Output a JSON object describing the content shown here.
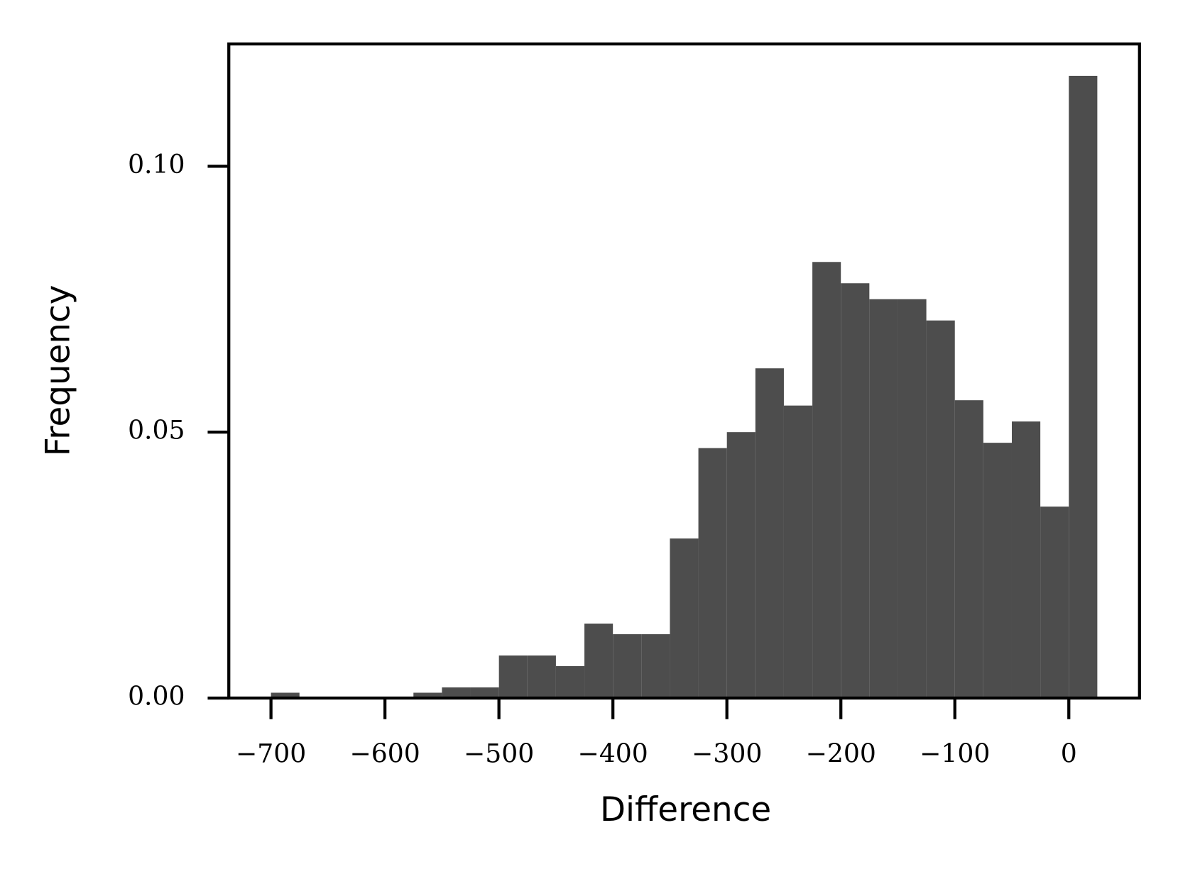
{
  "chart_data": {
    "type": "histogram",
    "x_label": "Difference",
    "y_label": "Frequency",
    "bins": [
      -700,
      -675,
      -650,
      -625,
      -600,
      -575,
      -550,
      -525,
      -500,
      -475,
      -450,
      -425,
      -400,
      -375,
      -350,
      -325,
      -300,
      -275,
      -250,
      -225,
      -200,
      -175,
      -150,
      -125,
      -100,
      -75,
      -50,
      -25,
      0,
      25
    ],
    "values": [
      0.001,
      0,
      0,
      0,
      0,
      0.001,
      0.002,
      0.002,
      0.008,
      0.008,
      0.006,
      0.014,
      0.012,
      0.012,
      0.03,
      0.047,
      0.05,
      0.062,
      0.055,
      0.082,
      0.078,
      0.075,
      0.075,
      0.071,
      0.056,
      0.048,
      0.052,
      0.036,
      0.117
    ],
    "color": "#4d4d4d",
    "xlim": [
      -737,
      62
    ],
    "ylim": [
      0,
      0.123
    ],
    "xticks": [
      {
        "value": -700,
        "label": "−700"
      },
      {
        "value": -600,
        "label": "−600"
      },
      {
        "value": -500,
        "label": "−500"
      },
      {
        "value": -400,
        "label": "−400"
      },
      {
        "value": -300,
        "label": "−300"
      },
      {
        "value": -200,
        "label": "−200"
      },
      {
        "value": -100,
        "label": "−100"
      },
      0
    ],
    "yticks": [
      {
        "value": 0,
        "label": "0.00"
      },
      {
        "value": 0.05,
        "label": "0.05"
      },
      {
        "value": 0.1,
        "label": "0.10"
      }
    ]
  }
}
